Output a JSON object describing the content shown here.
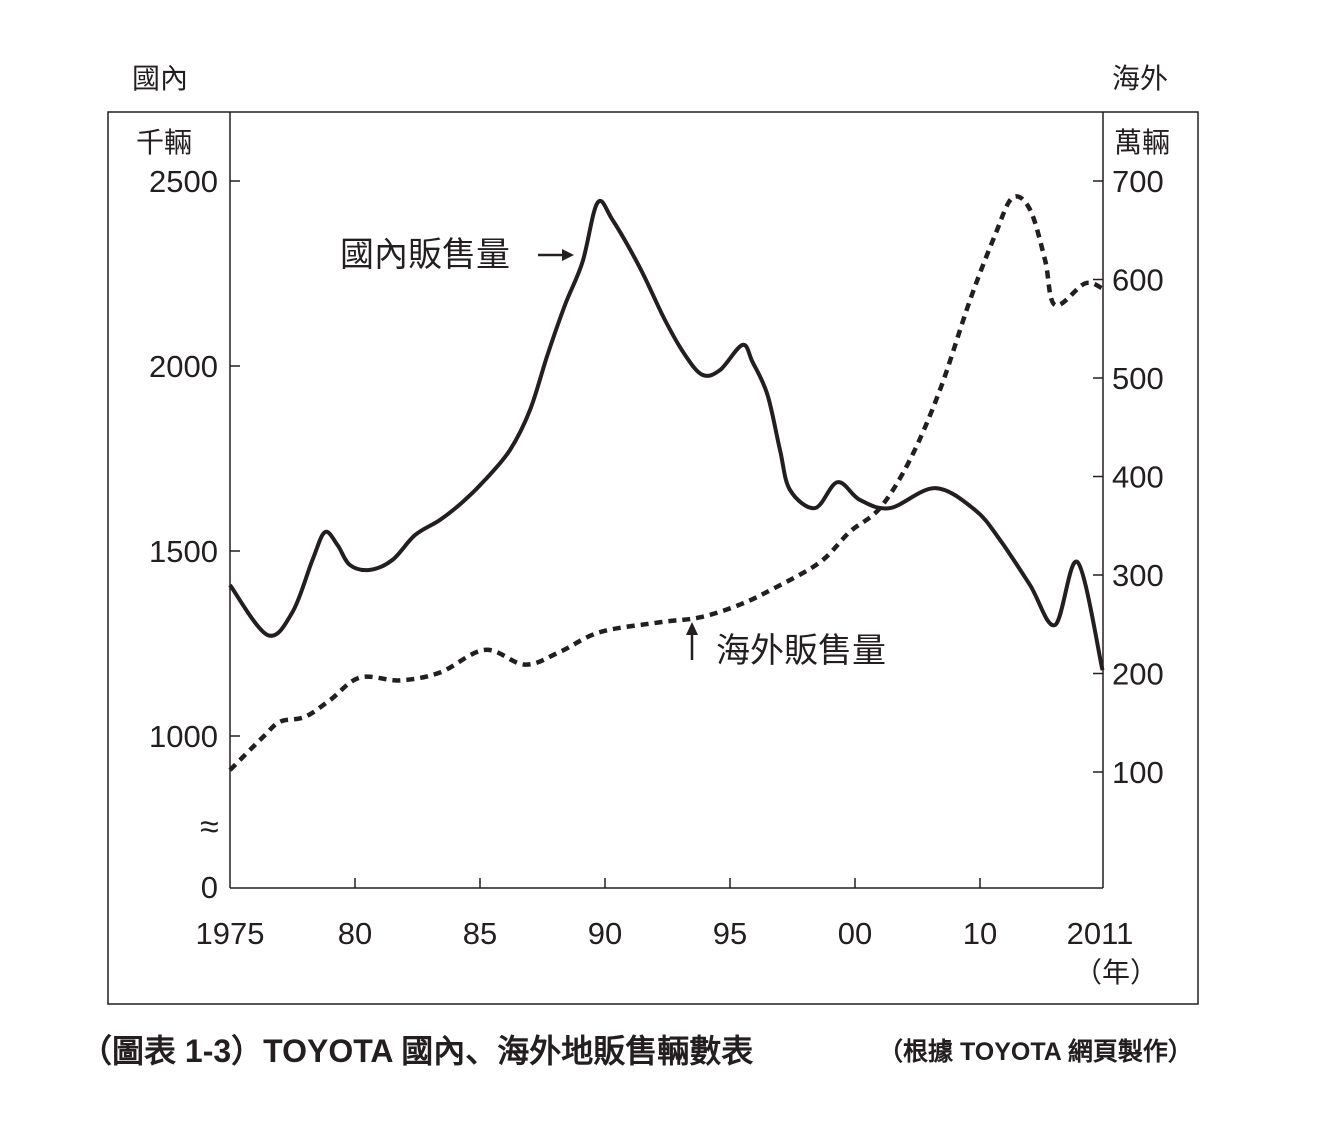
{
  "chart_data": {
    "type": "line",
    "title": "（圖表 1-3）TOYOTA 國內、海外地販售輛數表",
    "source_note": "（根據 TOYOTA 網頁製作）",
    "left_axis": {
      "label_top": "國內",
      "unit": "千輛",
      "ticks": [
        0,
        1000,
        1500,
        2000,
        2500
      ],
      "tick_labels": [
        "0",
        "1000",
        "1500",
        "2000",
        "2500"
      ],
      "range": [
        0,
        2500
      ],
      "axis_break": true,
      "break_symbol": "≈"
    },
    "right_axis": {
      "label_top": "海外",
      "unit": "萬輛",
      "ticks": [
        100,
        200,
        300,
        400,
        500,
        600,
        700
      ],
      "tick_labels": [
        "100",
        "200",
        "300",
        "400",
        "500",
        "600",
        "700"
      ],
      "range": [
        0,
        700
      ]
    },
    "x_axis": {
      "ticks": [
        1975,
        1980,
        1985,
        1990,
        1995,
        2000,
        2005,
        2010
      ],
      "tick_labels": [
        "1975",
        "80",
        "85",
        "90",
        "95",
        "00",
        "10",
        "2011"
      ],
      "unit": "（年）",
      "range": [
        1975,
        2010
      ]
    },
    "grid": false,
    "series": [
      {
        "name": "國內販售量",
        "axis": "left",
        "style": "solid",
        "annotation": "國內販售量",
        "x": [
          1975,
          1976.5,
          1977.5,
          1978.3,
          1978.8,
          1979.3,
          1979.8,
          1980.6,
          1981.5,
          1982.4,
          1983.4,
          1984.3,
          1985.2,
          1986.2,
          1987,
          1987.7,
          1988.4,
          1989.1,
          1989.7,
          1990.3,
          1991.4,
          1992.4,
          1993.2,
          1993.9,
          1994.6,
          1995.5,
          1995.9,
          1996.5,
          1997,
          1997.4,
          1998.4,
          1999.3,
          2000.2,
          2001.4,
          2003.2,
          2004.8,
          2005.8,
          2007,
          2008,
          2008.9,
          2009.9
        ],
        "y": [
          1408,
          1273,
          1335,
          1476,
          1551,
          1516,
          1462,
          1449,
          1476,
          1543,
          1584,
          1632,
          1692,
          1773,
          1881,
          2030,
          2165,
          2281,
          2441,
          2395,
          2265,
          2124,
          2030,
          1976,
          1989,
          2057,
          2011,
          1922,
          1773,
          1665,
          1616,
          1686,
          1638,
          1616,
          1670,
          1611,
          1530,
          1408,
          1300,
          1470,
          1178
        ]
      },
      {
        "name": "海外販售量",
        "axis": "right",
        "style": "dotted",
        "annotation": "海外販售量",
        "x": [
          1975,
          1976.3,
          1977,
          1978,
          1979,
          1980.2,
          1981.8,
          1983.4,
          1985.2,
          1986.8,
          1988.2,
          1989.8,
          1992.2,
          1993.8,
          1995.4,
          1996.8,
          1998.6,
          1999.8,
          2001,
          2002.2,
          2003.4,
          2004.6,
          2005.6,
          2006.3,
          2007,
          2007.6,
          2008,
          2009.2,
          2009.9
        ],
        "y": [
          102,
          135,
          151,
          156,
          173,
          196,
          193,
          201,
          224,
          209,
          222,
          242,
          252,
          257,
          270,
          287,
          313,
          344,
          368,
          417,
          488,
          579,
          645,
          683,
          671,
          620,
          574,
          596,
          591
        ]
      }
    ]
  }
}
